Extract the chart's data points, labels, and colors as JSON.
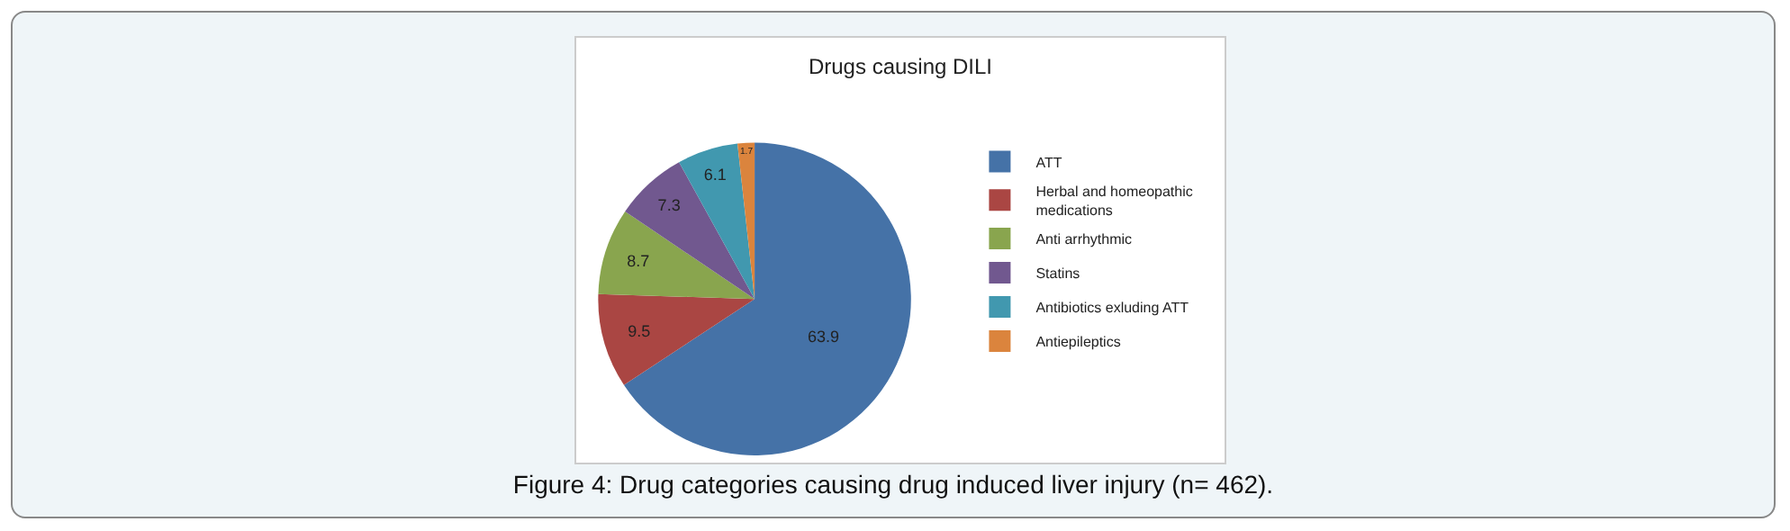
{
  "chart_data": {
    "type": "pie",
    "title": "Drugs causing DILI",
    "categories": [
      "ATT",
      "Herbal and homeopathic medications",
      "Anti arrhythmic",
      "Statins",
      "Antibiotics exluding ATT",
      "Antiepileptics"
    ],
    "values": [
      63.9,
      9.5,
      8.7,
      7.3,
      6.1,
      1.7
    ],
    "colors": [
      "#4572a7",
      "#aa4643",
      "#89a54e",
      "#71588f",
      "#4198af",
      "#db843d"
    ],
    "data_labels": true,
    "legend": "right",
    "annotations": [
      "Figure 4: Drug categories causing drug induced liver injury (n= 462)."
    ]
  }
}
